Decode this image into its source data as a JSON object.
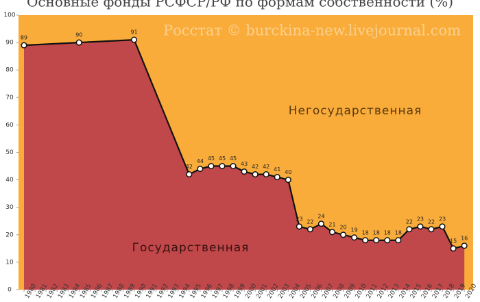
{
  "chart_data": {
    "type": "area",
    "title": "Основные фонды РСФСР/РФ по формам собственности (%)",
    "watermark": "Росстат © burckina-new.livejournal.com",
    "x": [
      1980,
      1985,
      1990,
      1995,
      1996,
      1997,
      1998,
      1999,
      2000,
      2001,
      2002,
      2003,
      2004,
      2005,
      2006,
      2007,
      2008,
      2009,
      2010,
      2011,
      2012,
      2013,
      2014,
      2015,
      2016,
      2017,
      2018,
      2019,
      2020
    ],
    "series": [
      {
        "name": "Государственная",
        "color": "#c0474a",
        "values": [
          89,
          90,
          91,
          42,
          44,
          45,
          45,
          45,
          43,
          42,
          42,
          41,
          40,
          23,
          22,
          24,
          21,
          20,
          19,
          18,
          18,
          18,
          18,
          22,
          23,
          22,
          23,
          15,
          16
        ]
      }
    ],
    "upper_region": {
      "label": "Негосударственная",
      "color": "#f9ac3a"
    },
    "xlim": [
      1979.5,
      2020.8
    ],
    "xticks": [
      1980,
      1981,
      1982,
      1983,
      1984,
      1985,
      1986,
      1987,
      1988,
      1989,
      1990,
      1991,
      1992,
      1993,
      1994,
      1995,
      1996,
      1997,
      1998,
      1999,
      2000,
      2001,
      2002,
      2003,
      2004,
      2005,
      2006,
      2007,
      2008,
      2009,
      2010,
      2011,
      2012,
      2013,
      2014,
      2015,
      2016,
      2017,
      2018,
      2019,
      2020
    ],
    "ylim": [
      0,
      100
    ],
    "yticks": [
      0,
      10,
      20,
      30,
      40,
      50,
      60,
      70,
      80,
      90,
      100
    ],
    "grid": false
  }
}
